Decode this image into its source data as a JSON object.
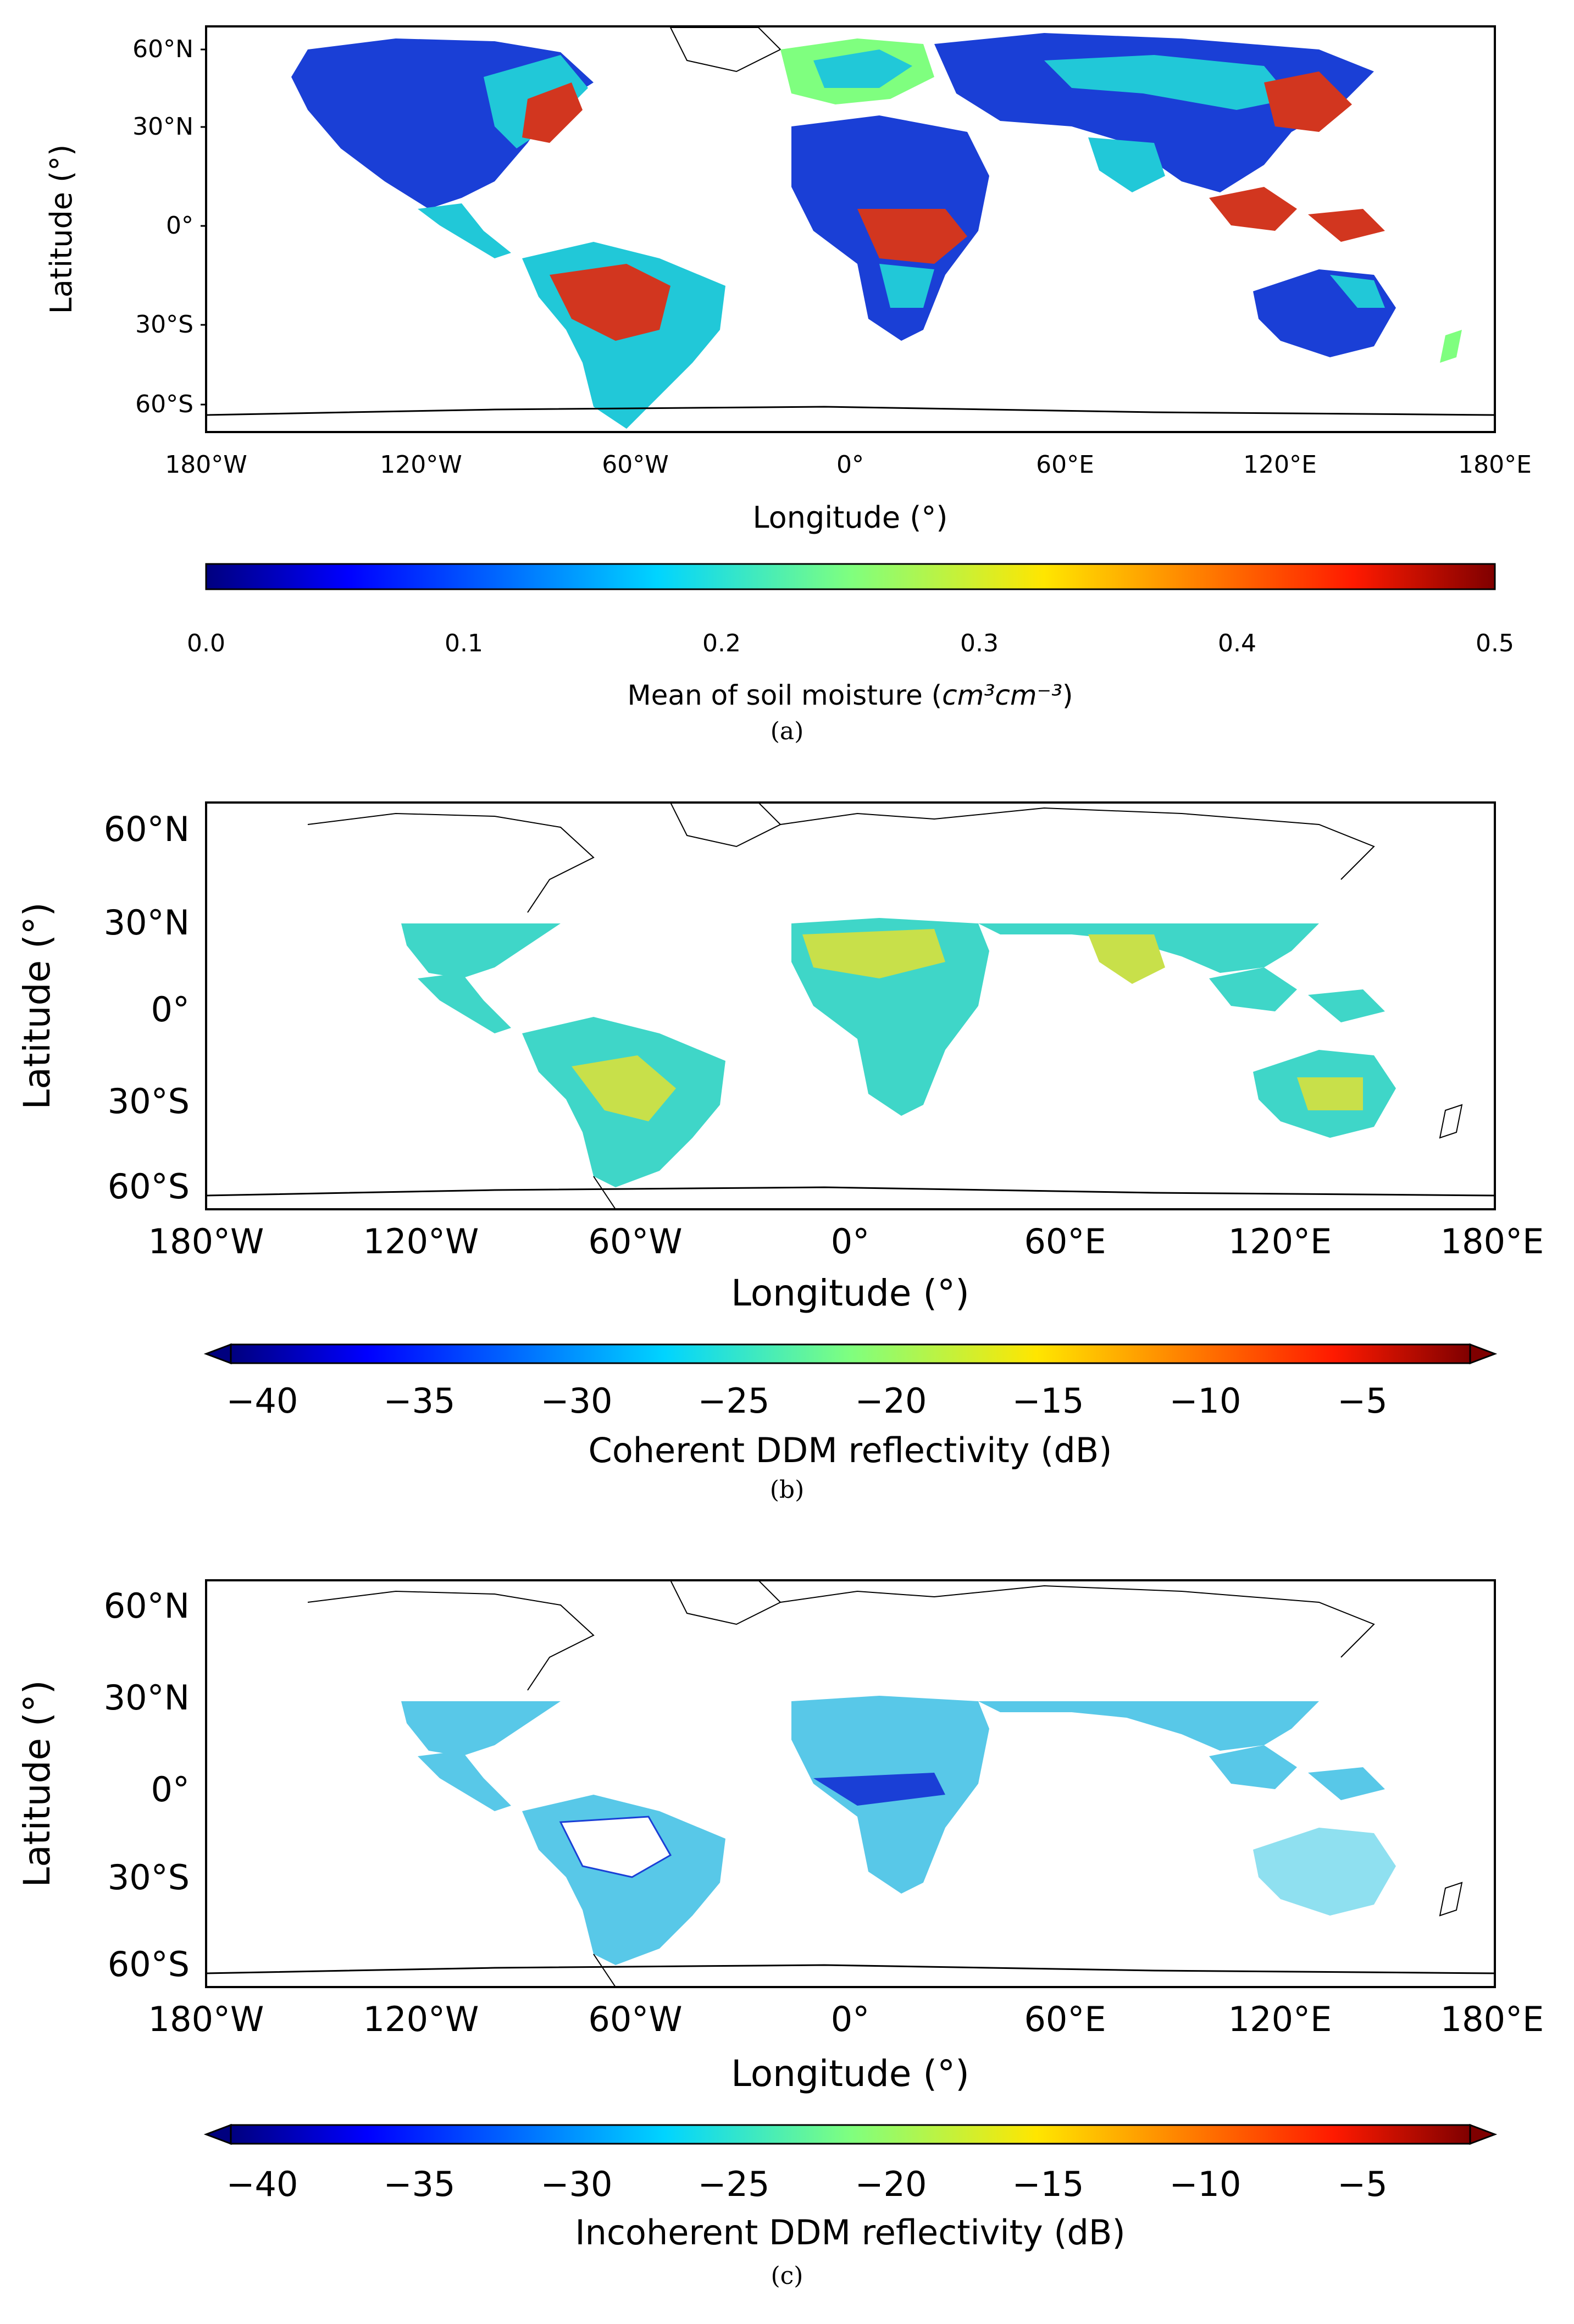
{
  "panels": [
    {
      "id": "a",
      "caption": "(a)",
      "xlabel": "Longitude (°)",
      "ylabel": "Latitude (°)",
      "xticks": [
        "180°W",
        "120°W",
        "60°W",
        "0°",
        "60°E",
        "120°E",
        "180°E"
      ],
      "yticks": [
        "60°N",
        "30°N",
        "0°",
        "30°S",
        "60°S"
      ],
      "colorbar": {
        "label": "Mean of soil moisture (cm³cm⁻³)",
        "label_main": "Mean of soil moisture (",
        "label_units": "cm³cm⁻³",
        "label_close": ")",
        "ticks": [
          "0.0",
          "0.1",
          "0.2",
          "0.3",
          "0.4",
          "0.5"
        ],
        "range": [
          0.0,
          0.5
        ],
        "extend": "neither",
        "colormap": "jet"
      },
      "coverage_lat": [
        -60,
        75
      ]
    },
    {
      "id": "b",
      "caption": "(b)",
      "xlabel": "Longitude (°)",
      "ylabel": "Latitude (°)",
      "xticks": [
        "180°W",
        "120°W",
        "60°W",
        "0°",
        "60°E",
        "120°E",
        "180°E"
      ],
      "yticks": [
        "60°N",
        "30°N",
        "0°",
        "30°S",
        "60°S"
      ],
      "colorbar": {
        "label": "Coherent DDM reflectivity (dB)",
        "ticks": [
          "−40",
          "−35",
          "−30",
          "−25",
          "−20",
          "−15",
          "−10",
          "−5"
        ],
        "range": [
          -42,
          -2
        ],
        "extend": "both",
        "colormap": "jet"
      },
      "coverage_lat": [
        -38,
        38
      ]
    },
    {
      "id": "c",
      "caption": "(c)",
      "xlabel": "Longitude (°)",
      "ylabel": "Latitude (°)",
      "xticks": [
        "180°W",
        "120°W",
        "60°W",
        "0°",
        "60°E",
        "120°E",
        "180°E"
      ],
      "yticks": [
        "60°N",
        "30°N",
        "0°",
        "30°S",
        "60°S"
      ],
      "colorbar": {
        "label": "Incoherent DDM reflectivity (dB)",
        "ticks": [
          "−40",
          "−35",
          "−30",
          "−25",
          "−20",
          "−15",
          "−10",
          "−5"
        ],
        "range": [
          -42,
          -2
        ],
        "extend": "both",
        "colormap": "jet"
      },
      "coverage_lat": [
        -38,
        38
      ]
    }
  ],
  "colors": {
    "jet": [
      "#00007f",
      "#0000ff",
      "#007fff",
      "#00ffff",
      "#7fff7f",
      "#ffff00",
      "#ff7f00",
      "#ff0000",
      "#7f0000"
    ],
    "land_a_dry": "#1a3fd6",
    "land_a_mid": "#21c8d8",
    "land_a_wet": "#d2361f",
    "land_b": "#3fd6c8",
    "land_b_warm": "#c8e04a",
    "land_c": "#58c8e8",
    "outline": "#000000"
  }
}
